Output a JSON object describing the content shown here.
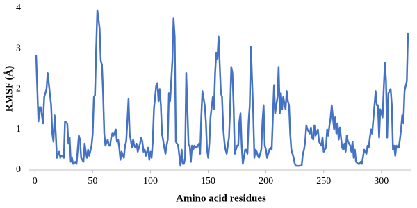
{
  "chart_data": {
    "type": "line",
    "xlabel": "Amino acid residues",
    "ylabel": "RMSF (Å)",
    "x": [
      1,
      3,
      4,
      5,
      7,
      8,
      10,
      11,
      14,
      15,
      16,
      17,
      18,
      19,
      21,
      22,
      23,
      25,
      26,
      28,
      29,
      30,
      31,
      32,
      33,
      35,
      36,
      37,
      38,
      39,
      40,
      42,
      43,
      44,
      45,
      46,
      47,
      49,
      50,
      51,
      52,
      53,
      54,
      56,
      57,
      58,
      59,
      60,
      61,
      63,
      64,
      65,
      66,
      67,
      68,
      70,
      71,
      72,
      73,
      74,
      75,
      77,
      78,
      79,
      80,
      81,
      82,
      84,
      85,
      86,
      87,
      88,
      89,
      91,
      92,
      93,
      94,
      95,
      96,
      98,
      99,
      100,
      101,
      102,
      103,
      105,
      106,
      107,
      108,
      109,
      110,
      112,
      113,
      114,
      115,
      116,
      117,
      119,
      120,
      121,
      122,
      123,
      124,
      126,
      127,
      128,
      129,
      130,
      131,
      133,
      134,
      135,
      136,
      137,
      138,
      140,
      141,
      142,
      143,
      144,
      145,
      147,
      148,
      149,
      150,
      151,
      152,
      154,
      155,
      156,
      157,
      158,
      159,
      161,
      162,
      163,
      164,
      165,
      166,
      168,
      169,
      170,
      171,
      172,
      173,
      175,
      176,
      177,
      178,
      179,
      180,
      182,
      183,
      184,
      185,
      186,
      187,
      189,
      190,
      191,
      192,
      193,
      194,
      196,
      197,
      198,
      199,
      200,
      201,
      203,
      204,
      205,
      206,
      207,
      208,
      210,
      211,
      212,
      213,
      214,
      215,
      217,
      218,
      219,
      220,
      221,
      222,
      224,
      225,
      226,
      229,
      231,
      232,
      233,
      234,
      235,
      236,
      238,
      239,
      240,
      241,
      242,
      243,
      245,
      246,
      247,
      248,
      249,
      250,
      252,
      253,
      254,
      255,
      256,
      257,
      259,
      260,
      261,
      262,
      263,
      264,
      266,
      267,
      268,
      269,
      270,
      271,
      273,
      274,
      275,
      276,
      277,
      278,
      280,
      281,
      282,
      283,
      284,
      285,
      287,
      288,
      289,
      290,
      291,
      292,
      294,
      295,
      296,
      297,
      298,
      299,
      301,
      302,
      303,
      304,
      305,
      306,
      308,
      309,
      310,
      311,
      312,
      313,
      315,
      316,
      317,
      318,
      319,
      320,
      322,
      323
    ],
    "values": [
      2.85,
      1.2,
      1.55,
      1.55,
      1.15,
      1.8,
      2.0,
      2.4,
      1.6,
      0.9,
      0.7,
      1.35,
      0.9,
      0.3,
      0.45,
      0.3,
      0.35,
      0.3,
      1.2,
      1.15,
      0.65,
      0.8,
      0.2,
      0.3,
      0.15,
      0.2,
      0.15,
      0.5,
      0.85,
      0.75,
      0.3,
      0.2,
      0.65,
      0.45,
      0.3,
      0.5,
      0.35,
      0.6,
      0.9,
      1.8,
      1.85,
      3.0,
      3.95,
      3.5,
      2.7,
      2.6,
      1.9,
      0.9,
      0.6,
      0.75,
      0.6,
      0.6,
      0.8,
      0.9,
      0.85,
      1.0,
      0.7,
      0.75,
      0.55,
      0.25,
      0.45,
      0.3,
      0.6,
      0.7,
      1.2,
      1.75,
      0.9,
      0.55,
      0.75,
      0.6,
      0.55,
      0.65,
      0.45,
      0.65,
      0.8,
      0.7,
      0.45,
      0.5,
      0.35,
      0.55,
      0.25,
      0.45,
      0.3,
      0.7,
      1.5,
      2.1,
      2.15,
      1.7,
      2.0,
      1.6,
      0.9,
      0.55,
      0.4,
      0.6,
      0.75,
      1.9,
      1.7,
      2.7,
      3.75,
      3.3,
      0.7,
      0.65,
      0.6,
      0.1,
      0.5,
      0.15,
      0.15,
      0.3,
      2.4,
      0.6,
      0.6,
      0.2,
      0.6,
      0.5,
      0.6,
      0.55,
      0.6,
      0.65,
      0.4,
      1.3,
      1.95,
      1.6,
      1.2,
      0.5,
      0.3,
      0.65,
      1.3,
      1.8,
      1.5,
      2.4,
      2.9,
      2.75,
      3.3,
      1.9,
      1.8,
      1.05,
      0.7,
      0.5,
      0.4,
      0.8,
      1.5,
      2.55,
      2.4,
      1.6,
      0.4,
      0.6,
      0.6,
      1.2,
      1.4,
      0.6,
      0.15,
      0.5,
      0.5,
      0.4,
      1.2,
      1.6,
      3.05,
      1.4,
      0.3,
      0.5,
      0.45,
      0.35,
      0.3,
      0.5,
      1.2,
      1.6,
      0.6,
      0.5,
      0.3,
      0.5,
      0.55,
      0.5,
      1.3,
      2.1,
      1.4,
      1.8,
      2.55,
      1.4,
      1.9,
      1.5,
      1.8,
      1.5,
      1.95,
      1.7,
      1.6,
      0.9,
      0.5,
      0.3,
      0.15,
      0.1,
      0.1,
      0.12,
      0.4,
      0.5,
      0.7,
      1.1,
      1.0,
      0.9,
      1.05,
      0.8,
      0.75,
      1.1,
      0.85,
      1.0,
      0.7,
      0.65,
      0.6,
      0.8,
      0.45,
      0.55,
      1.0,
      0.85,
      1.1,
      1.3,
      1.6,
      1.0,
      1.3,
      0.9,
      1.15,
      0.75,
      1.05,
      0.55,
      0.5,
      0.65,
      0.45,
      0.85,
      0.7,
      0.6,
      0.45,
      0.7,
      0.3,
      0.5,
      0.2,
      0.15,
      0.15,
      0.2,
      0.15,
      0.3,
      0.5,
      0.4,
      0.6,
      0.55,
      0.8,
      1.0,
      0.9,
      1.6,
      1.95,
      1.6,
      1.6,
      0.8,
      1.5,
      1.3,
      2.0,
      2.65,
      2.2,
      0.8,
      1.9,
      2.0,
      1.6,
      0.5,
      0.6,
      0.35,
      0.6,
      0.55,
      0.75,
      1.0,
      1.35,
      1.15,
      1.95,
      2.2,
      3.4
    ],
    "color": "#4472c4",
    "xlim": [
      -5,
      326
    ],
    "xticks": [
      0,
      50,
      100,
      150,
      200,
      250,
      300
    ],
    "ylim": [
      0,
      4
    ],
    "yticks": [
      0,
      1,
      2,
      3,
      4
    ],
    "grid": false
  }
}
